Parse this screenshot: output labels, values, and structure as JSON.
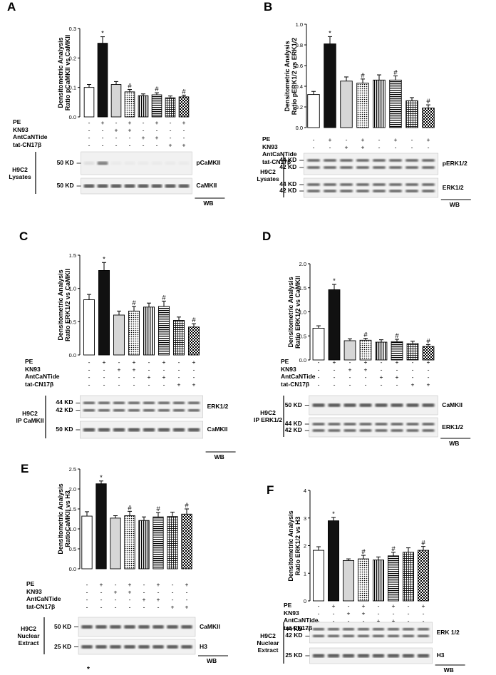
{
  "panels": [
    {
      "id": "A",
      "label": "A",
      "y_title": [
        "Densitometric Analysis",
        "Ratio pCaMKII vs CaMKII"
      ],
      "blot_sample": [
        "H9C2",
        "Lysates"
      ],
      "bands": [
        {
          "kd": [
            "50 KD"
          ],
          "name": "pCaMKII"
        },
        {
          "kd": [
            "50 KD"
          ],
          "name": "CaMKII"
        }
      ],
      "wb": "WB"
    },
    {
      "id": "B",
      "label": "B",
      "y_title": [
        "Densitometric Analysis",
        "Ratio pERK1/2 vs ERK1/2"
      ],
      "blot_sample": [
        "H9C2",
        "Lysates"
      ],
      "bands": [
        {
          "kd": [
            "44 KD",
            "42 KD"
          ],
          "name": "pERK1/2"
        },
        {
          "kd": [
            "44 KD",
            "42 KD"
          ],
          "name": "ERK1/2"
        }
      ],
      "wb": "WB"
    },
    {
      "id": "C",
      "label": "C",
      "y_title": [
        "Densitometric Analysis",
        "Ratio ERK1/2 vs CaMKII"
      ],
      "blot_sample": [
        "H9C2",
        "IP CaMKII"
      ],
      "bands": [
        {
          "kd": [
            "44 KD",
            "42 KD"
          ],
          "name": "ERK1/2"
        },
        {
          "kd": [
            "50 KD"
          ],
          "name": "CaMKII"
        }
      ],
      "wb": "WB"
    },
    {
      "id": "D",
      "label": "D",
      "y_title": [
        "Densitometric Analysis",
        "Ratio ERK1/2 vs CaMKII"
      ],
      "blot_sample": [
        "H9C2",
        "IP ERK1/2"
      ],
      "bands": [
        {
          "kd": [
            "50 KD"
          ],
          "name": "CaMKII"
        },
        {
          "kd": [
            "44 KD",
            "42 KD"
          ],
          "name": "ERK1/2"
        }
      ],
      "wb": "WB"
    },
    {
      "id": "E",
      "label": "E",
      "y_title": [
        "Densitometric Analysis",
        "RatioCaMKII vs H3"
      ],
      "blot_sample": [
        "H9C2",
        "Nuclear",
        "Extract"
      ],
      "bands": [
        {
          "kd": [
            "50 KD"
          ],
          "name": "CaMKII"
        },
        {
          "kd": [
            "25 KD"
          ],
          "name": "H3"
        }
      ],
      "wb": "WB"
    },
    {
      "id": "F",
      "label": "F",
      "y_title": [
        "Densitometric Analysis",
        "Ratio ERK1/2 vs H3"
      ],
      "blot_sample": [
        "H9C2",
        "Nuclear",
        "Extract"
      ],
      "bands": [
        {
          "kd": [
            "44 KD",
            "42 KD"
          ],
          "name": "ERK 1/2"
        },
        {
          "kd": [
            "25 KD"
          ],
          "name": "H3"
        }
      ],
      "wb": "WB"
    }
  ],
  "treatments": {
    "rows": [
      "PE",
      "KN93",
      "AntCaNTide",
      "tat-CN17β"
    ],
    "signs": [
      [
        "-",
        "+",
        "-",
        "+",
        "-",
        "+",
        "-",
        "+"
      ],
      [
        "-",
        "-",
        "+",
        "+",
        "-",
        "-",
        "-",
        "-"
      ],
      [
        "-",
        "-",
        "-",
        "-",
        "+",
        "+",
        "-",
        "-"
      ],
      [
        "-",
        "-",
        "-",
        "-",
        "-",
        "-",
        "+",
        "+"
      ]
    ]
  },
  "stray_mark": "*",
  "chart_data": [
    {
      "panel": "A",
      "type": "bar",
      "ylim": [
        0,
        0.3
      ],
      "yticks": [
        "0.0",
        "0.1",
        "0.2",
        "0.3"
      ],
      "values": [
        0.1,
        0.25,
        0.11,
        0.085,
        0.072,
        0.075,
        0.065,
        0.068
      ],
      "errors": [
        0.01,
        0.022,
        0.01,
        0.008,
        0.006,
        0.007,
        0.006,
        0.006
      ],
      "annotations": [
        "",
        "*",
        "",
        "#",
        "",
        "#",
        "",
        "#"
      ]
    },
    {
      "panel": "B",
      "type": "bar",
      "ylim": [
        0,
        1.0
      ],
      "yticks": [
        "0.0",
        "0.2",
        "0.4",
        "0.6",
        "0.8",
        "1.0"
      ],
      "values": [
        0.32,
        0.81,
        0.45,
        0.43,
        0.46,
        0.46,
        0.26,
        0.19
      ],
      "errors": [
        0.03,
        0.07,
        0.04,
        0.04,
        0.05,
        0.04,
        0.03,
        0.03
      ],
      "annotations": [
        "",
        "*",
        "",
        "#",
        "",
        "#",
        "",
        "#"
      ]
    },
    {
      "panel": "C",
      "type": "bar",
      "ylim": [
        0,
        1.5
      ],
      "yticks": [
        "0.0",
        "0.5",
        "1.0",
        "1.5"
      ],
      "values": [
        0.83,
        1.27,
        0.6,
        0.66,
        0.72,
        0.73,
        0.52,
        0.42
      ],
      "errors": [
        0.08,
        0.12,
        0.06,
        0.07,
        0.06,
        0.08,
        0.05,
        0.05
      ],
      "annotations": [
        "",
        "*",
        "",
        "#",
        "",
        "#",
        "",
        "#"
      ]
    },
    {
      "panel": "D",
      "type": "bar",
      "ylim": [
        0,
        2.0
      ],
      "yticks": [
        "0.0",
        "0.5",
        "1.0",
        "1.5",
        "2.0"
      ],
      "values": [
        0.66,
        1.46,
        0.4,
        0.41,
        0.37,
        0.38,
        0.34,
        0.28
      ],
      "errors": [
        0.05,
        0.11,
        0.04,
        0.04,
        0.05,
        0.05,
        0.05,
        0.04
      ],
      "annotations": [
        "",
        "*",
        "",
        "#",
        "",
        "#",
        "",
        "#"
      ]
    },
    {
      "panel": "E",
      "type": "bar",
      "ylim": [
        0,
        2.5
      ],
      "yticks": [
        "0.0",
        "0.5",
        "1.0",
        "1.5",
        "2.0",
        "2.5"
      ],
      "values": [
        1.32,
        2.13,
        1.27,
        1.33,
        1.21,
        1.3,
        1.31,
        1.37
      ],
      "errors": [
        0.11,
        0.07,
        0.06,
        0.11,
        0.09,
        0.11,
        0.11,
        0.13
      ],
      "annotations": [
        "",
        "*",
        "",
        "#",
        "",
        "#",
        "",
        "#"
      ]
    },
    {
      "panel": "F",
      "type": "bar",
      "ylim": [
        0,
        4
      ],
      "yticks": [
        "0",
        "1",
        "2",
        "3",
        "4"
      ],
      "values": [
        1.83,
        2.9,
        1.46,
        1.52,
        1.48,
        1.63,
        1.76,
        1.83
      ],
      "errors": [
        0.13,
        0.12,
        0.06,
        0.13,
        0.11,
        0.13,
        0.16,
        0.14
      ],
      "annotations": [
        "",
        "*",
        "",
        "#",
        "",
        "#",
        "",
        "#"
      ]
    }
  ]
}
